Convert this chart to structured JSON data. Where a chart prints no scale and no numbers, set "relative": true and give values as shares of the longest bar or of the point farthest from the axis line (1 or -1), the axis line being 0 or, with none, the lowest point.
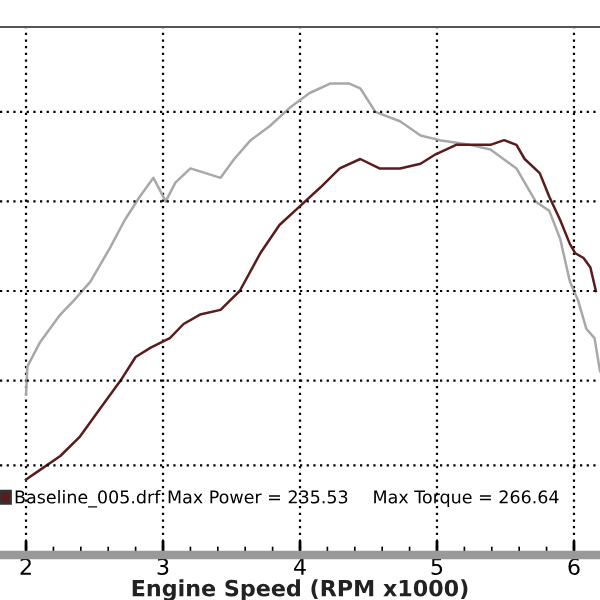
{
  "chart_data": {
    "type": "line",
    "relative": true,
    "xlabel": "Engine Speed (RPM x1000)",
    "xlim": [
      1.81,
      6.19
    ],
    "xticks": [
      2,
      3,
      4,
      5,
      6
    ],
    "ref_lines": [
      {
        "axis": "y",
        "value": 0.19,
        "color": "#000000",
        "line_style": "dotted"
      },
      {
        "axis": "y",
        "value": 0.37,
        "color": "#000000",
        "line_style": "dotted"
      },
      {
        "axis": "y",
        "value": 0.56,
        "color": "#000000",
        "line_style": "dotted"
      },
      {
        "axis": "y",
        "value": 0.75,
        "color": "#000000",
        "line_style": "dotted"
      },
      {
        "axis": "y",
        "value": 0.94,
        "color": "#000000",
        "line_style": "dotted"
      }
    ],
    "tick_labels": "x",
    "grid": "x",
    "line_style": "solid",
    "marker": "none",
    "legend": "bottom left",
    "annotations": [
      "Max Power = 235.53",
      "Max Torque = 266.64"
    ],
    "series": [
      {
        "color": "#a8a8a8",
        "x": [
          2.0,
          2.01,
          2.1,
          2.25,
          2.35,
          2.47,
          2.61,
          2.72,
          2.83,
          2.93,
          3.02,
          3.09,
          3.2,
          3.31,
          3.42,
          3.52,
          3.64,
          3.78,
          3.93,
          4.07,
          4.22,
          4.36,
          4.44,
          4.55,
          4.73,
          4.88,
          5.02,
          5.24,
          5.39,
          5.58,
          5.72,
          5.82,
          5.9,
          5.97,
          6.03,
          6.09,
          6.15,
          6.19
        ],
        "values": [
          0.34,
          0.4,
          0.45,
          0.51,
          0.54,
          0.58,
          0.65,
          0.71,
          0.76,
          0.8,
          0.75,
          0.79,
          0.82,
          0.81,
          0.8,
          0.84,
          0.88,
          0.91,
          0.95,
          0.98,
          1.0,
          1.0,
          0.99,
          0.94,
          0.92,
          0.89,
          0.88,
          0.87,
          0.86,
          0.82,
          0.75,
          0.73,
          0.67,
          0.58,
          0.54,
          0.48,
          0.46,
          0.39
        ]
      },
      {
        "name": "Baseline_005.drf",
        "color": "#5a1c1c",
        "x": [
          2.0,
          2.1,
          2.25,
          2.39,
          2.54,
          2.69,
          2.8,
          2.91,
          2.98,
          3.05,
          3.15,
          3.27,
          3.42,
          3.49,
          3.56,
          3.71,
          3.85,
          4.0,
          4.15,
          4.29,
          4.44,
          4.58,
          4.73,
          4.88,
          4.99,
          5.14,
          5.28,
          5.39,
          5.49,
          5.58,
          5.64,
          5.75,
          5.82,
          5.9,
          5.97,
          6.01,
          6.07,
          6.12,
          6.16
        ],
        "values": [
          0.16,
          0.18,
          0.21,
          0.25,
          0.31,
          0.37,
          0.42,
          0.44,
          0.45,
          0.46,
          0.49,
          0.51,
          0.52,
          0.54,
          0.56,
          0.64,
          0.7,
          0.74,
          0.78,
          0.82,
          0.84,
          0.82,
          0.82,
          0.83,
          0.85,
          0.87,
          0.87,
          0.87,
          0.88,
          0.87,
          0.84,
          0.81,
          0.76,
          0.71,
          0.66,
          0.64,
          0.63,
          0.61,
          0.56
        ]
      }
    ]
  }
}
